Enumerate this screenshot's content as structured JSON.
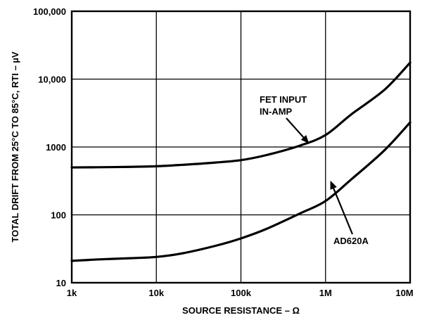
{
  "chart_data": {
    "type": "line",
    "title": "",
    "xlabel": "SOURCE RESISTANCE – Ω",
    "ylabel": "TOTAL DRIFT FROM 25°C TO 85°C, RTI – µV",
    "x_scale": "log",
    "y_scale": "log",
    "xlim": [
      1000,
      10000000
    ],
    "ylim": [
      10,
      100000
    ],
    "grid": true,
    "x_ticks": [
      {
        "value": 1000,
        "label": "1k"
      },
      {
        "value": 10000,
        "label": "10k"
      },
      {
        "value": 100000,
        "label": "100k"
      },
      {
        "value": 1000000,
        "label": "1M"
      },
      {
        "value": 10000000,
        "label": "10M"
      }
    ],
    "y_ticks": [
      {
        "value": 10,
        "label": "10"
      },
      {
        "value": 100,
        "label": "100"
      },
      {
        "value": 1000,
        "label": "1000"
      },
      {
        "value": 10000,
        "label": "10,000"
      },
      {
        "value": 100000,
        "label": "100,000"
      }
    ],
    "series": [
      {
        "name": "FET INPUT IN-AMP",
        "x": [
          1000,
          2000,
          5000,
          10000,
          20000,
          50000,
          100000,
          200000,
          500000,
          1000000,
          2000000,
          5000000,
          10000000
        ],
        "y": [
          500,
          503,
          510,
          520,
          545,
          590,
          640,
          760,
          1050,
          1500,
          3000,
          7000,
          17500
        ]
      },
      {
        "name": "AD620A",
        "x": [
          1000,
          2000,
          5000,
          10000,
          20000,
          50000,
          100000,
          200000,
          500000,
          1000000,
          2000000,
          5000000,
          10000000
        ],
        "y": [
          21,
          22,
          23,
          24,
          27,
          35,
          45,
          62,
          105,
          160,
          330,
          900,
          2300
        ]
      }
    ],
    "annotations": [
      {
        "lines": [
          "FET INPUT",
          "IN-AMP"
        ],
        "series": "FET INPUT IN-AMP",
        "target": {
          "x": 640000,
          "y": 1120
        }
      },
      {
        "lines": [
          "AD620A"
        ],
        "series": "AD620A",
        "target": {
          "x": 1140000,
          "y": 320
        }
      }
    ]
  }
}
